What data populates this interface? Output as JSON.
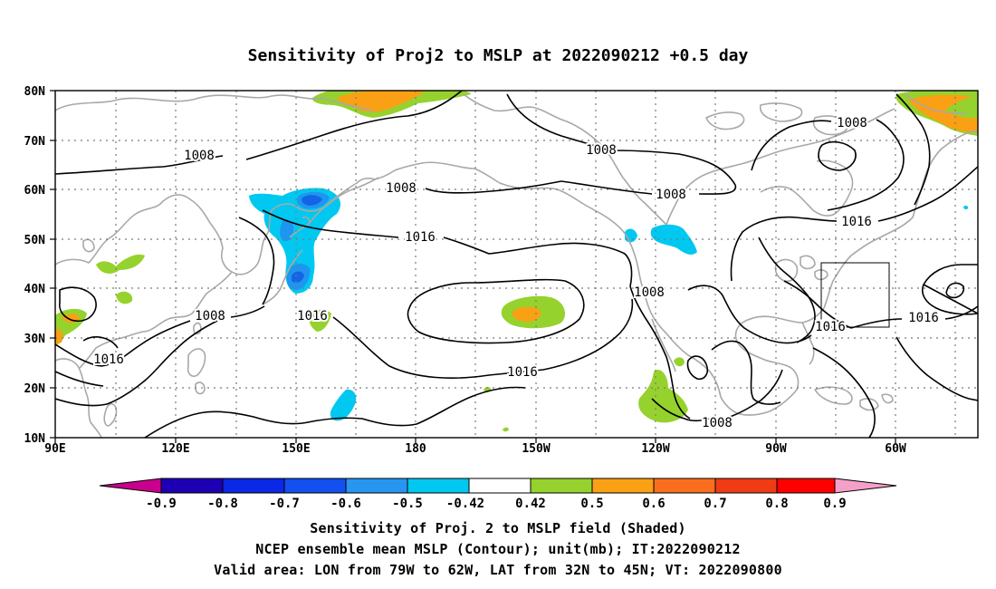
{
  "title": "Sensitivity of Proj2 to MSLP at 2022090212 +0.5 day",
  "map": {
    "lat_ticks": [
      "80N",
      "70N",
      "60N",
      "50N",
      "40N",
      "30N",
      "20N",
      "10N"
    ],
    "lon_ticks": [
      "90E",
      "120E",
      "150E",
      "180",
      "150W",
      "120W",
      "90W",
      "60W"
    ],
    "gridlines": true,
    "region": {
      "lon_west_to_east": "90E to 50W",
      "lat_south_to_north": "10N to 80N"
    },
    "valid_box": {
      "lon": "79W to 62W",
      "lat": "32N to 45N"
    }
  },
  "contour_labels": [
    {
      "label": "1008",
      "name": "label-1008-northwest"
    },
    {
      "label": "1008",
      "name": "label-1008-bering"
    },
    {
      "label": "1008",
      "name": "label-1008-alaska"
    },
    {
      "label": "1008",
      "name": "label-1008-hudson"
    },
    {
      "label": "1008",
      "name": "label-1008-greenland"
    },
    {
      "label": "1016",
      "name": "label-1016-aleutian"
    },
    {
      "label": "1016",
      "name": "label-1016-canada"
    },
    {
      "label": "1016",
      "name": "label-1016-japan"
    },
    {
      "label": "1008",
      "name": "label-1008-china"
    },
    {
      "label": "1016",
      "name": "label-1016-southchina"
    },
    {
      "label": "1008",
      "name": "label-1008-california"
    },
    {
      "label": "1016",
      "name": "label-1016-pacific-high"
    },
    {
      "label": "1008",
      "name": "label-1008-mexico"
    },
    {
      "label": "1016",
      "name": "label-1016-eastcoast"
    },
    {
      "label": "1016",
      "name": "label-1016-atlantic"
    }
  ],
  "colorbar": {
    "labels": [
      "-0.9",
      "-0.8",
      "-0.7",
      "-0.6",
      "-0.5",
      "-0.42",
      "0.42",
      "0.5",
      "0.6",
      "0.7",
      "0.8",
      "0.9"
    ],
    "colors": [
      "#c8008c",
      "#1e00b4",
      "#0a28e6",
      "#1450f0",
      "#2896f0",
      "#3cc8f0",
      "#ffffff",
      "#96d22d",
      "#faa014",
      "#fa6e1e",
      "#f03c14",
      "#ff0000",
      "#f5a0c8"
    ]
  },
  "footer": {
    "line1": "Sensitivity of Proj. 2 to MSLP field (Shaded)",
    "line2": "NCEP ensemble mean MSLP (Contour); unit(mb); IT:2022090212",
    "line3": "Valid area: LON from 79W to 62W, LAT from 32N to 45N; VT: 2022090800"
  },
  "colors": {
    "coast": "#a8a8a8",
    "contour": "#000000",
    "green": "#96d22d",
    "orange": "#faa014",
    "cyan": "#00c8f0",
    "blue": "#1e96f0",
    "deepblue": "#1464e6"
  }
}
